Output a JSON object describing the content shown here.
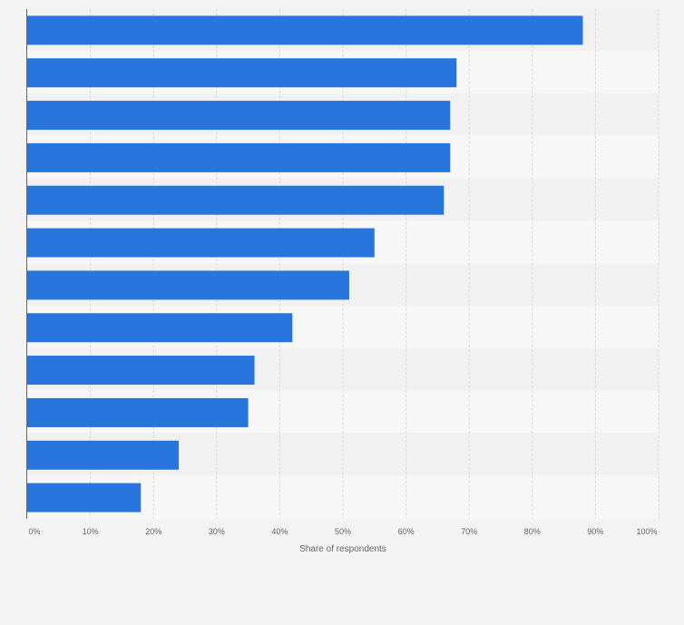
{
  "chart_data": {
    "type": "bar",
    "orientation": "horizontal",
    "title": "",
    "xlabel": "Share of respondents",
    "ylabel": "",
    "xlim": [
      0,
      100
    ],
    "x_ticks": [
      "0%",
      "10%",
      "20%",
      "30%",
      "40%",
      "50%",
      "60%",
      "70%",
      "80%",
      "90%",
      "100%"
    ],
    "categories": [
      "",
      "",
      "",
      "",
      "",
      "",
      "",
      "",
      "",
      "",
      "",
      ""
    ],
    "values": [
      88,
      68,
      67,
      67,
      66,
      55,
      51,
      42,
      36,
      35,
      24,
      18
    ],
    "value_unit": "%",
    "grid": true,
    "colors": {
      "bar": "#2876dd",
      "band_light": "#f7f7f7",
      "band_dark": "#f1f1f1",
      "page_bg": "#f3f3f3",
      "grid": "#d9d9d9",
      "axis": "#666666"
    }
  }
}
